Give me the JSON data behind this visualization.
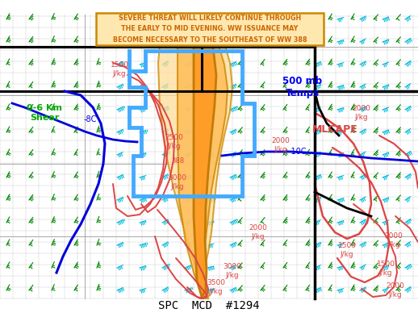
{
  "title": "SPC  MCD  #1294",
  "title_fontsize": 10,
  "background_color": "#ffffff",
  "fig_width": 5.18,
  "fig_height": 3.88,
  "annotation_text": "SEVERE THREAT WILL LIKELY CONTINUE THROUGH\nTHE EARLY TO MID EVENING. WW ISSUANCE MAY\nBECOME NECESSARY TO THE SOUTHEAST OF WW 388",
  "annotation_color": "#cc6600",
  "annotation_bg": "#ffe8b0",
  "annotation_border": "#cc8800",
  "label_0_6km": "0-6 Km\nShear",
  "label_0_6km_color": "#00aa00",
  "label_500mb": "500 mb\nTemps",
  "label_500mb_color": "#0000ee",
  "label_mlcape": "MLCAPE",
  "label_mlcape_color": "#dd4444",
  "label_10c": "-10C",
  "label_10c_color": "#0000ee",
  "label_8c": "-8C",
  "label_8c_color": "#0000ee",
  "red_color": "#dd4444",
  "blue_color": "#0000dd",
  "cyan_color": "#00bbdd",
  "green_color": "#008800",
  "orange_color": "#cc8800",
  "blue_box_color": "#44aaff",
  "black_border_color": "#000000"
}
